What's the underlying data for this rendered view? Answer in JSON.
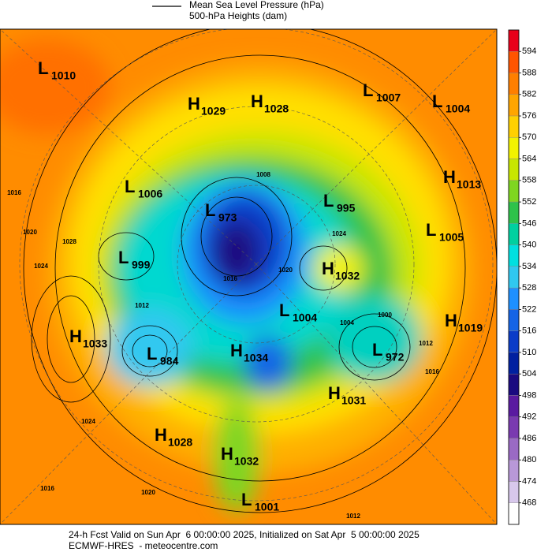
{
  "legend": {
    "items": [
      "Mean Sea Level Pressure (hPa)",
      "500-hPa Heights (dam)"
    ]
  },
  "colorbar": {
    "ticks": [
      594,
      588,
      582,
      576,
      570,
      564,
      558,
      552,
      546,
      540,
      534,
      528,
      522,
      516,
      510,
      504,
      498,
      492,
      486,
      480,
      474,
      468
    ],
    "colors": [
      "#e8001a",
      "#ff5500",
      "#ff7f00",
      "#ffa500",
      "#ffd000",
      "#f2f200",
      "#c8e600",
      "#7fd620",
      "#2ec24a",
      "#00d0a0",
      "#00e0e0",
      "#30c8f0",
      "#1e90ff",
      "#1464e6",
      "#0a3cc8",
      "#0020a0",
      "#1a0a80",
      "#5a1aa0",
      "#7a3ab0",
      "#9a6ac4",
      "#b898d8",
      "#d8c8ec",
      "#ffffff"
    ]
  },
  "centers": [
    {
      "type": "L",
      "value": 1010
    },
    {
      "type": "H",
      "value": 1029
    },
    {
      "type": "H",
      "value": 1028
    },
    {
      "type": "L",
      "value": 1007
    },
    {
      "type": "L",
      "value": 1004
    },
    {
      "type": "H",
      "value": 1013
    },
    {
      "type": "L",
      "value": 1006
    },
    {
      "type": "L",
      "value": 973
    },
    {
      "type": "L",
      "value": 995
    },
    {
      "type": "L",
      "value": 1005
    },
    {
      "type": "L",
      "value": 999
    },
    {
      "type": "H",
      "value": 1032
    },
    {
      "type": "L",
      "value": 1004
    },
    {
      "type": "H",
      "value": 1019
    },
    {
      "type": "H",
      "value": 1033
    },
    {
      "type": "L",
      "value": 984
    },
    {
      "type": "H",
      "value": 1034
    },
    {
      "type": "L",
      "value": 972
    },
    {
      "type": "H",
      "value": 1031
    },
    {
      "type": "H",
      "value": 1028
    },
    {
      "type": "H",
      "value": 1032
    },
    {
      "type": "L",
      "value": 1001
    }
  ],
  "contour_labels": [
    1008,
    1016,
    1020,
    1024,
    1028,
    1024,
    1020,
    1016,
    1012,
    1004,
    1000,
    1012,
    1016,
    1024,
    1020,
    1016,
    1012
  ],
  "footer": {
    "line1": "24-h Fcst Valid on Sun Apr  6 00:00:00 2025, Initialized on Sat Apr  5 00:00:00 2025",
    "line2": "ECMWF-HRES  - meteocentre.com"
  }
}
